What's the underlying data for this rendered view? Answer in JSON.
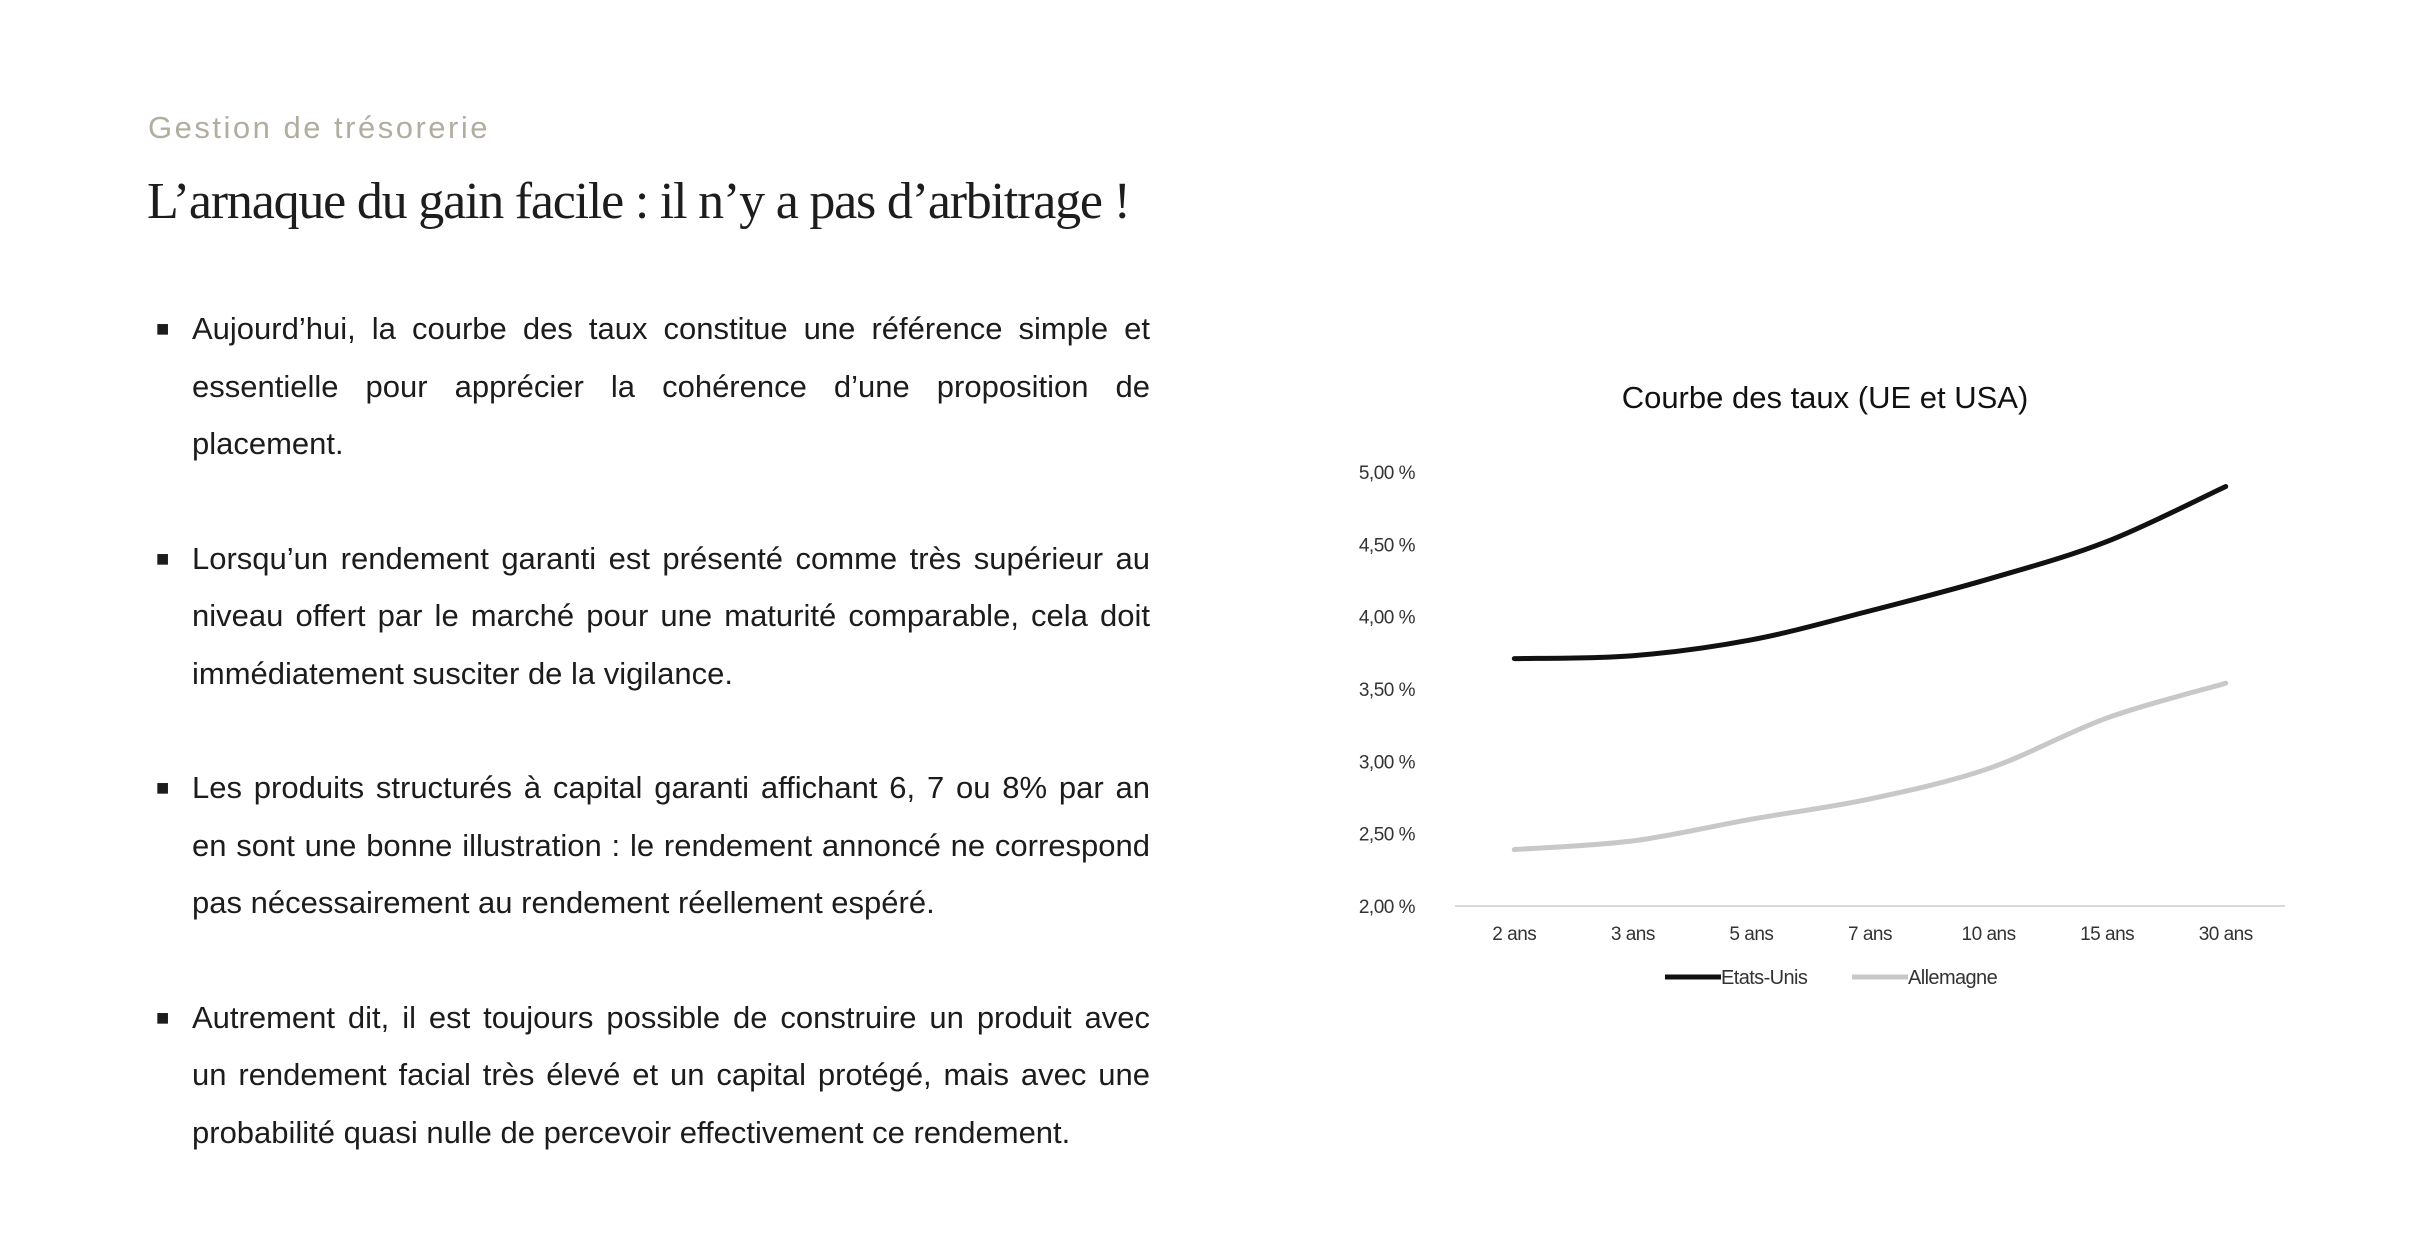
{
  "header": {
    "section_label": "Gestion de trésorerie",
    "title": "L’arnaque du gain facile : il n’y a pas d’arbitrage !"
  },
  "bullets": [
    {
      "text": "Aujourd’hui, la courbe des taux constitue une référence simple et essentielle pour apprécier la cohérence d’une proposition de placement."
    },
    {
      "text": "Lorsqu’un rendement garanti est présenté comme très supérieur au niveau offert par le marché pour une maturité comparable, cela doit immédiatement susciter de la vigilance."
    },
    {
      "text": "Les produits structurés à capital garanti affichant 6, 7 ou 8% par an en sont une bonne illustration : le rendement annoncé ne correspond pas nécessairement au rendement réellement espéré."
    },
    {
      "text": "Autrement dit, il est toujours possible de construire un produit avec un rendement facial très élevé et un capital protégé, mais avec une probabilité quasi nulle de percevoir effectivement ce rendement."
    }
  ],
  "chart_data": {
    "type": "line",
    "title": "Courbe des taux (UE et USA)",
    "xlabel": "",
    "ylabel": "",
    "categories": [
      "2 ans",
      "3 ans",
      "5 ans",
      "7 ans",
      "10 ans",
      "15 ans",
      "30 ans"
    ],
    "ylim": [
      2.0,
      5.0
    ],
    "yticks": [
      2.0,
      2.5,
      3.0,
      3.5,
      4.0,
      4.5,
      5.0
    ],
    "ytick_labels": [
      "2,00 %",
      "2,50 %",
      "3,00 %",
      "3,50 %",
      "4,00 %",
      "4,50 %",
      "5,00 %"
    ],
    "grid": false,
    "legend_position": "bottom",
    "series": [
      {
        "name": "Etats-Unis",
        "values": [
          3.71,
          3.73,
          3.84,
          4.04,
          4.26,
          4.52,
          4.9
        ],
        "color": "#111111"
      },
      {
        "name": "Allemagne",
        "values": [
          2.39,
          2.45,
          2.6,
          2.74,
          2.95,
          3.3,
          3.54
        ],
        "color": "#c8c8c8"
      }
    ]
  }
}
